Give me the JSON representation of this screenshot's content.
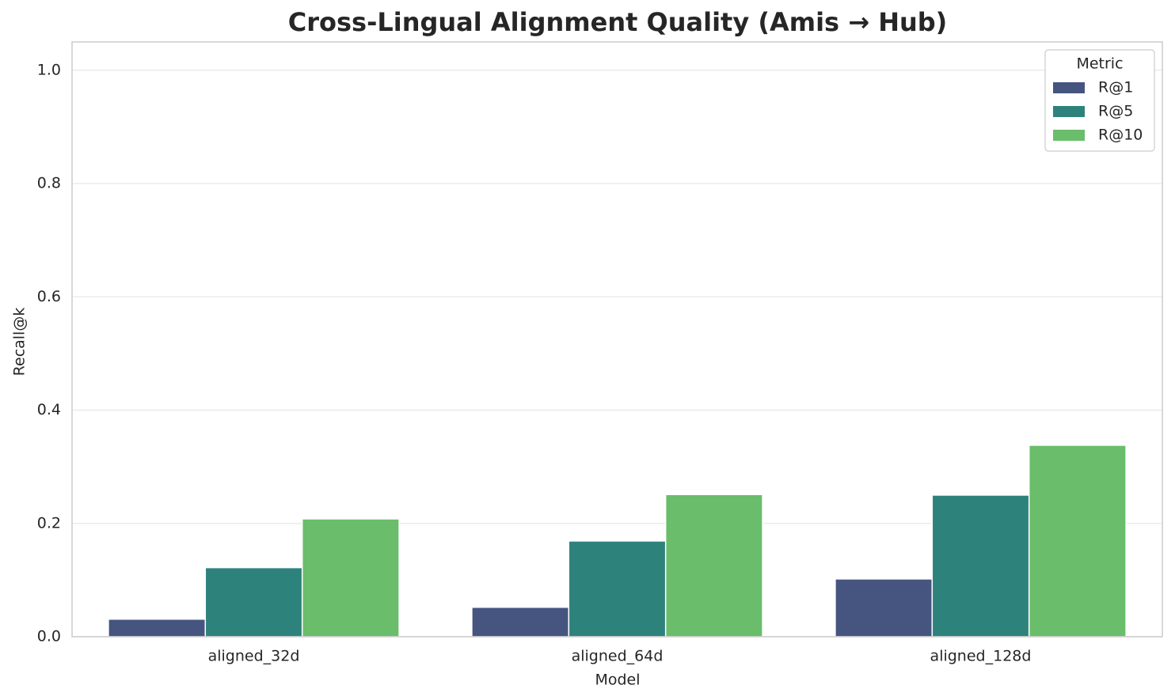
{
  "chart_data": {
    "type": "bar",
    "title": "Cross-Lingual Alignment Quality (Amis → Hub)",
    "xlabel": "Model",
    "ylabel": "Recall@k",
    "categories": [
      "aligned_32d",
      "aligned_64d",
      "aligned_128d"
    ],
    "series": [
      {
        "name": "R@1",
        "color": "#46557f",
        "values": [
          0.031,
          0.052,
          0.102
        ]
      },
      {
        "name": "R@5",
        "color": "#2e827c",
        "values": [
          0.122,
          0.169,
          0.25
        ]
      },
      {
        "name": "R@10",
        "color": "#6abd6a",
        "values": [
          0.208,
          0.251,
          0.338
        ]
      }
    ],
    "ylim": [
      0,
      1.05
    ],
    "yticks": [
      {
        "value": 0,
        "label": "0.0"
      },
      0.2,
      0.4,
      0.6,
      0.8,
      {
        "value": 1,
        "label": "1.0"
      }
    ],
    "grid": true,
    "legend_title": "Metric",
    "legend_position": "upper right"
  }
}
